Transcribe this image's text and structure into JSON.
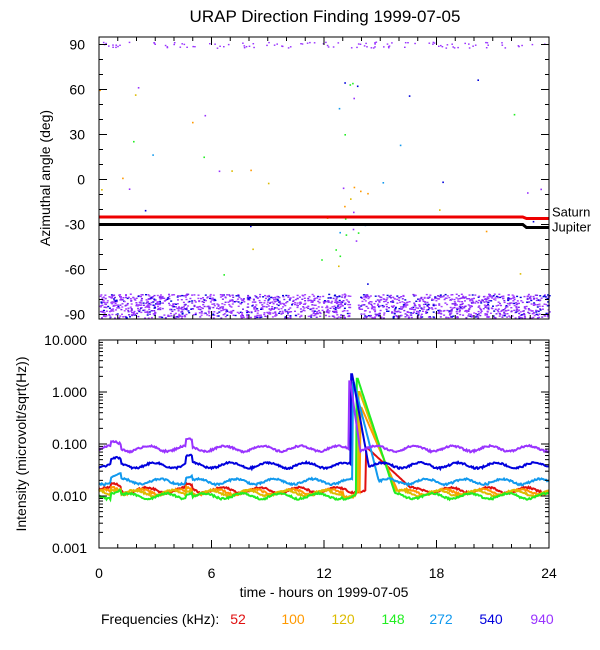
{
  "title": "URAP Direction Finding  1999-07-05",
  "colors": {
    "c52": "#e01010",
    "c100": "#ff9900",
    "c120": "#ddbb00",
    "c148": "#22ee22",
    "c272": "#1199ee",
    "c540": "#0000dd",
    "c940": "#9933ff"
  },
  "chart_data": [
    {
      "type": "scatter",
      "name": "azimuth",
      "ylabel": "Azimuthal angle (deg)",
      "xlim": [
        0,
        24
      ],
      "ylim": [
        -93,
        95
      ],
      "yticks": [
        "90",
        "60",
        "30",
        "0",
        "-30",
        "-60",
        "-90"
      ],
      "ytick_values": [
        90,
        60,
        30,
        0,
        -30,
        -60,
        -90
      ],
      "reference_lines": [
        {
          "label": "Saturn",
          "y": -25,
          "y_end": -26,
          "color": "#ee0000"
        },
        {
          "label": "Jupiter",
          "y": -30,
          "y_end": -32,
          "color": "#000000"
        }
      ],
      "noise_band": {
        "y_range": [
          -92,
          -76
        ],
        "color": "#9933ff",
        "gap_x": [
          13.4,
          13.8
        ]
      }
    },
    {
      "type": "line",
      "name": "intensity",
      "ylabel": "Intensity (microvolt/sqrt(Hz))",
      "xlabel": "time - hours on 1999-07-05",
      "xlim": [
        0,
        24
      ],
      "yscale": "log",
      "ylim": [
        0.001,
        10
      ],
      "yticks": [
        "10.000",
        "1.000",
        "0.100",
        "0.010",
        "0.001"
      ],
      "ytick_values": [
        10,
        1,
        0.1,
        0.01,
        0.001
      ],
      "xticks": [
        "0",
        "6",
        "12",
        "18",
        "24"
      ],
      "xtick_values": [
        0,
        6,
        12,
        18,
        24
      ],
      "series": [
        {
          "name": "52",
          "color": "#e01010",
          "baseline": 0.013,
          "peak": 0.085,
          "peak_x": 14.3,
          "decay": 3.0
        },
        {
          "name": "100",
          "color": "#ff9900",
          "baseline": 0.012,
          "peak": 0.5,
          "peak_x": 14.0,
          "decay": 1.2
        },
        {
          "name": "120",
          "color": "#ddbb00",
          "baseline": 0.0115,
          "peak": 1.0,
          "peak_x": 13.9,
          "decay": 1.0
        },
        {
          "name": "148",
          "color": "#22ee22",
          "baseline": 0.01,
          "peak": 1.8,
          "peak_x": 13.8,
          "decay": 0.9
        },
        {
          "name": "272",
          "color": "#1199ee",
          "baseline": 0.019,
          "peak": 1.5,
          "peak_x": 13.6,
          "decay": 0.7
        },
        {
          "name": "540",
          "color": "#0000dd",
          "baseline": 0.039,
          "peak": 2.2,
          "peak_x": 13.5,
          "decay": 0.5
        },
        {
          "name": "940",
          "color": "#9933ff",
          "baseline": 0.082,
          "peak": 1.6,
          "peak_x": 13.4,
          "decay": 0.4
        }
      ]
    }
  ],
  "legend": {
    "label": "Frequencies (kHz):",
    "items": [
      {
        "text": "52",
        "color": "#e01010"
      },
      {
        "text": "100",
        "color": "#ff9900"
      },
      {
        "text": "120",
        "color": "#ddbb00"
      },
      {
        "text": "148",
        "color": "#22ee22"
      },
      {
        "text": "272",
        "color": "#1199ee"
      },
      {
        "text": "540",
        "color": "#0000dd"
      },
      {
        "text": "940",
        "color": "#9933ff"
      }
    ]
  }
}
